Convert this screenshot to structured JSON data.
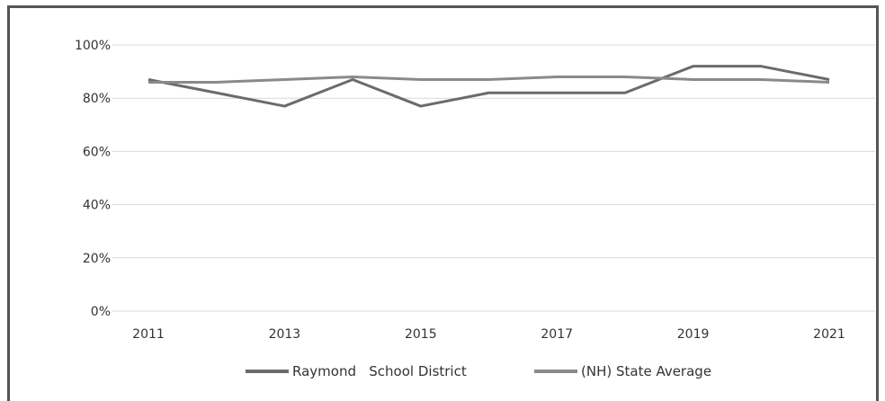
{
  "chart_data": {
    "type": "line",
    "title": "",
    "xlabel": "",
    "ylabel": "",
    "x": [
      2011,
      2012,
      2013,
      2014,
      2015,
      2016,
      2017,
      2018,
      2019,
      2020,
      2021
    ],
    "x_tick_labels": [
      "2011",
      "2013",
      "2015",
      "2017",
      "2019",
      "2021"
    ],
    "y_tick_labels": [
      "0%",
      "20%",
      "40%",
      "60%",
      "80%",
      "100%"
    ],
    "ylim": [
      0,
      100
    ],
    "xlim": [
      2011,
      2021
    ],
    "grid": "horizontal",
    "legend_position": "bottom",
    "series": [
      {
        "name": "Raymond   School District",
        "color": "#6b6b6b",
        "values": [
          87,
          82,
          77,
          87,
          77,
          82,
          82,
          82,
          92,
          92,
          87
        ]
      },
      {
        "name": "(NH) State Average",
        "color": "#8a8a8a",
        "values": [
          86,
          86,
          87,
          88,
          87,
          87,
          88,
          88,
          87,
          87,
          86
        ]
      }
    ]
  }
}
